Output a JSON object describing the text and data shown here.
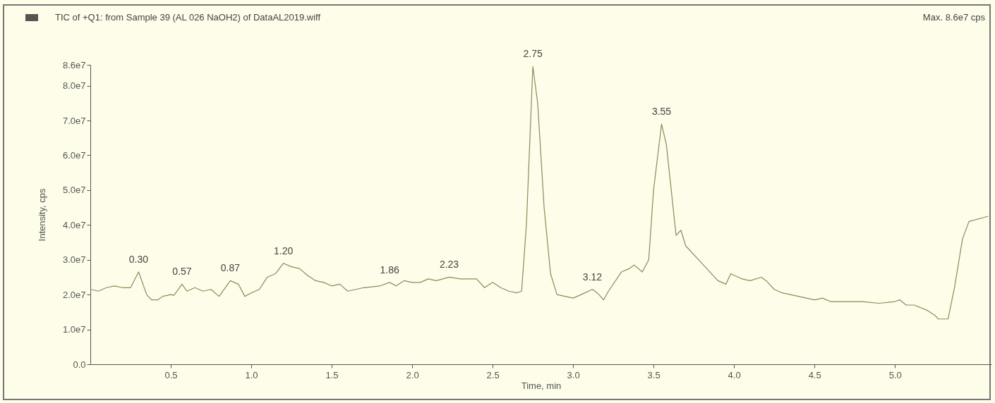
{
  "chart_data": {
    "type": "line",
    "title": "TIC of +Q1: from Sample 39 (AL 026 NaOH2) of DataAL2019.wiff",
    "xlabel": "Time, min",
    "ylabel": "Intensity, cps",
    "annotations": [
      "Max. 8.6e7 cps",
      {
        "text": "0.30",
        "x": 0.3,
        "y": 26500000
      },
      {
        "text": "0.57",
        "x": 0.57,
        "y": 23000000
      },
      {
        "text": "0.87",
        "x": 0.87,
        "y": 24000000
      },
      {
        "text": "1.20",
        "x": 1.2,
        "y": 29000000
      },
      {
        "text": "1.86",
        "x": 1.86,
        "y": 23500000
      },
      {
        "text": "2.23",
        "x": 2.23,
        "y": 25000000
      },
      {
        "text": "2.75",
        "x": 2.75,
        "y": 85500000
      },
      {
        "text": "3.12",
        "x": 3.12,
        "y": 21500000
      },
      {
        "text": "3.55",
        "x": 3.55,
        "y": 69000000
      }
    ],
    "x": [
      0,
      0.05,
      0.1,
      0.15,
      0.2,
      0.25,
      0.3,
      0.35,
      0.38,
      0.42,
      0.45,
      0.5,
      0.52,
      0.57,
      0.6,
      0.65,
      0.7,
      0.75,
      0.8,
      0.87,
      0.92,
      0.96,
      1.0,
      1.05,
      1.1,
      1.15,
      1.2,
      1.25,
      1.3,
      1.35,
      1.4,
      1.45,
      1.5,
      1.55,
      1.6,
      1.65,
      1.7,
      1.8,
      1.86,
      1.9,
      1.95,
      2.0,
      2.05,
      2.1,
      2.15,
      2.23,
      2.3,
      2.4,
      2.45,
      2.5,
      2.55,
      2.6,
      2.65,
      2.68,
      2.71,
      2.75,
      2.78,
      2.82,
      2.86,
      2.9,
      2.95,
      3.0,
      3.05,
      3.12,
      3.15,
      3.19,
      3.22,
      3.3,
      3.35,
      3.38,
      3.43,
      3.47,
      3.5,
      3.55,
      3.58,
      3.61,
      3.64,
      3.67,
      3.7,
      3.8,
      3.9,
      3.95,
      3.98,
      4.05,
      4.1,
      4.17,
      4.2,
      4.25,
      4.3,
      4.4,
      4.5,
      4.55,
      4.6,
      4.8,
      4.9,
      5.0,
      5.03,
      5.07,
      5.12,
      5.2,
      5.25,
      5.27,
      5.33,
      5.37,
      5.42,
      5.46,
      5.58
    ],
    "series": [
      {
        "color": "#8c8a5c",
        "values": [
          21500000,
          21000000,
          22000000,
          22500000,
          22000000,
          22000000,
          26500000,
          20000000,
          18500000,
          18500000,
          19500000,
          20000000,
          19800000,
          23000000,
          21000000,
          22000000,
          21000000,
          21500000,
          19500000,
          24000000,
          23000000,
          19500000,
          20500000,
          21500000,
          25000000,
          26000000,
          29000000,
          28000000,
          27500000,
          25500000,
          24000000,
          23500000,
          22500000,
          23000000,
          21000000,
          21500000,
          22000000,
          22500000,
          23500000,
          22500000,
          24000000,
          23500000,
          23500000,
          24500000,
          24000000,
          25000000,
          24500000,
          24500000,
          22000000,
          23500000,
          22000000,
          21000000,
          20500000,
          21000000,
          40000000,
          85500000,
          75000000,
          45000000,
          26000000,
          20000000,
          19500000,
          19000000,
          20000000,
          21500000,
          20500000,
          18500000,
          21000000,
          26500000,
          27500000,
          28500000,
          26500000,
          30000000,
          50000000,
          69000000,
          63000000,
          50000000,
          37000000,
          38500000,
          34000000,
          29000000,
          24000000,
          23000000,
          26000000,
          24500000,
          24000000,
          25000000,
          24000000,
          21500000,
          20500000,
          19500000,
          18500000,
          19000000,
          18000000,
          18000000,
          17500000,
          18000000,
          18500000,
          17000000,
          17000000,
          15500000,
          14000000,
          13000000,
          13000000,
          22000000,
          36000000,
          41000000,
          42500000
        ]
      }
    ],
    "xlim": [
      0,
      5.6
    ],
    "ylim": [
      0,
      86000000
    ],
    "xticks": [
      {
        "value": 0.5,
        "label": "0.5"
      },
      {
        "value": 1,
        "label": "1.0"
      },
      {
        "value": 1.5,
        "label": "1.5"
      },
      {
        "value": 2,
        "label": "2.0"
      },
      {
        "value": 2.5,
        "label": "2.5"
      },
      {
        "value": 3,
        "label": "3.0"
      },
      {
        "value": 3.5,
        "label": "3.5"
      },
      {
        "value": 4,
        "label": "4.0"
      },
      {
        "value": 4.5,
        "label": "4.5"
      },
      {
        "value": 5,
        "label": "5.0"
      }
    ],
    "yticks": [
      {
        "value": 0,
        "label": "0.0"
      },
      {
        "value": 10000000,
        "label": "1.0e7"
      },
      {
        "value": 20000000,
        "label": "2.0e7"
      },
      {
        "value": 30000000,
        "label": "3.0e7"
      },
      {
        "value": 40000000,
        "label": "4.0e7"
      },
      {
        "value": 50000000,
        "label": "5.0e7"
      },
      {
        "value": 60000000,
        "label": "6.0e7"
      },
      {
        "value": 70000000,
        "label": "7.0e7"
      },
      {
        "value": 80000000,
        "label": "8.0e7"
      },
      {
        "value": 86000000,
        "label": "8.6e7"
      }
    ],
    "grid": false,
    "legend": false
  }
}
